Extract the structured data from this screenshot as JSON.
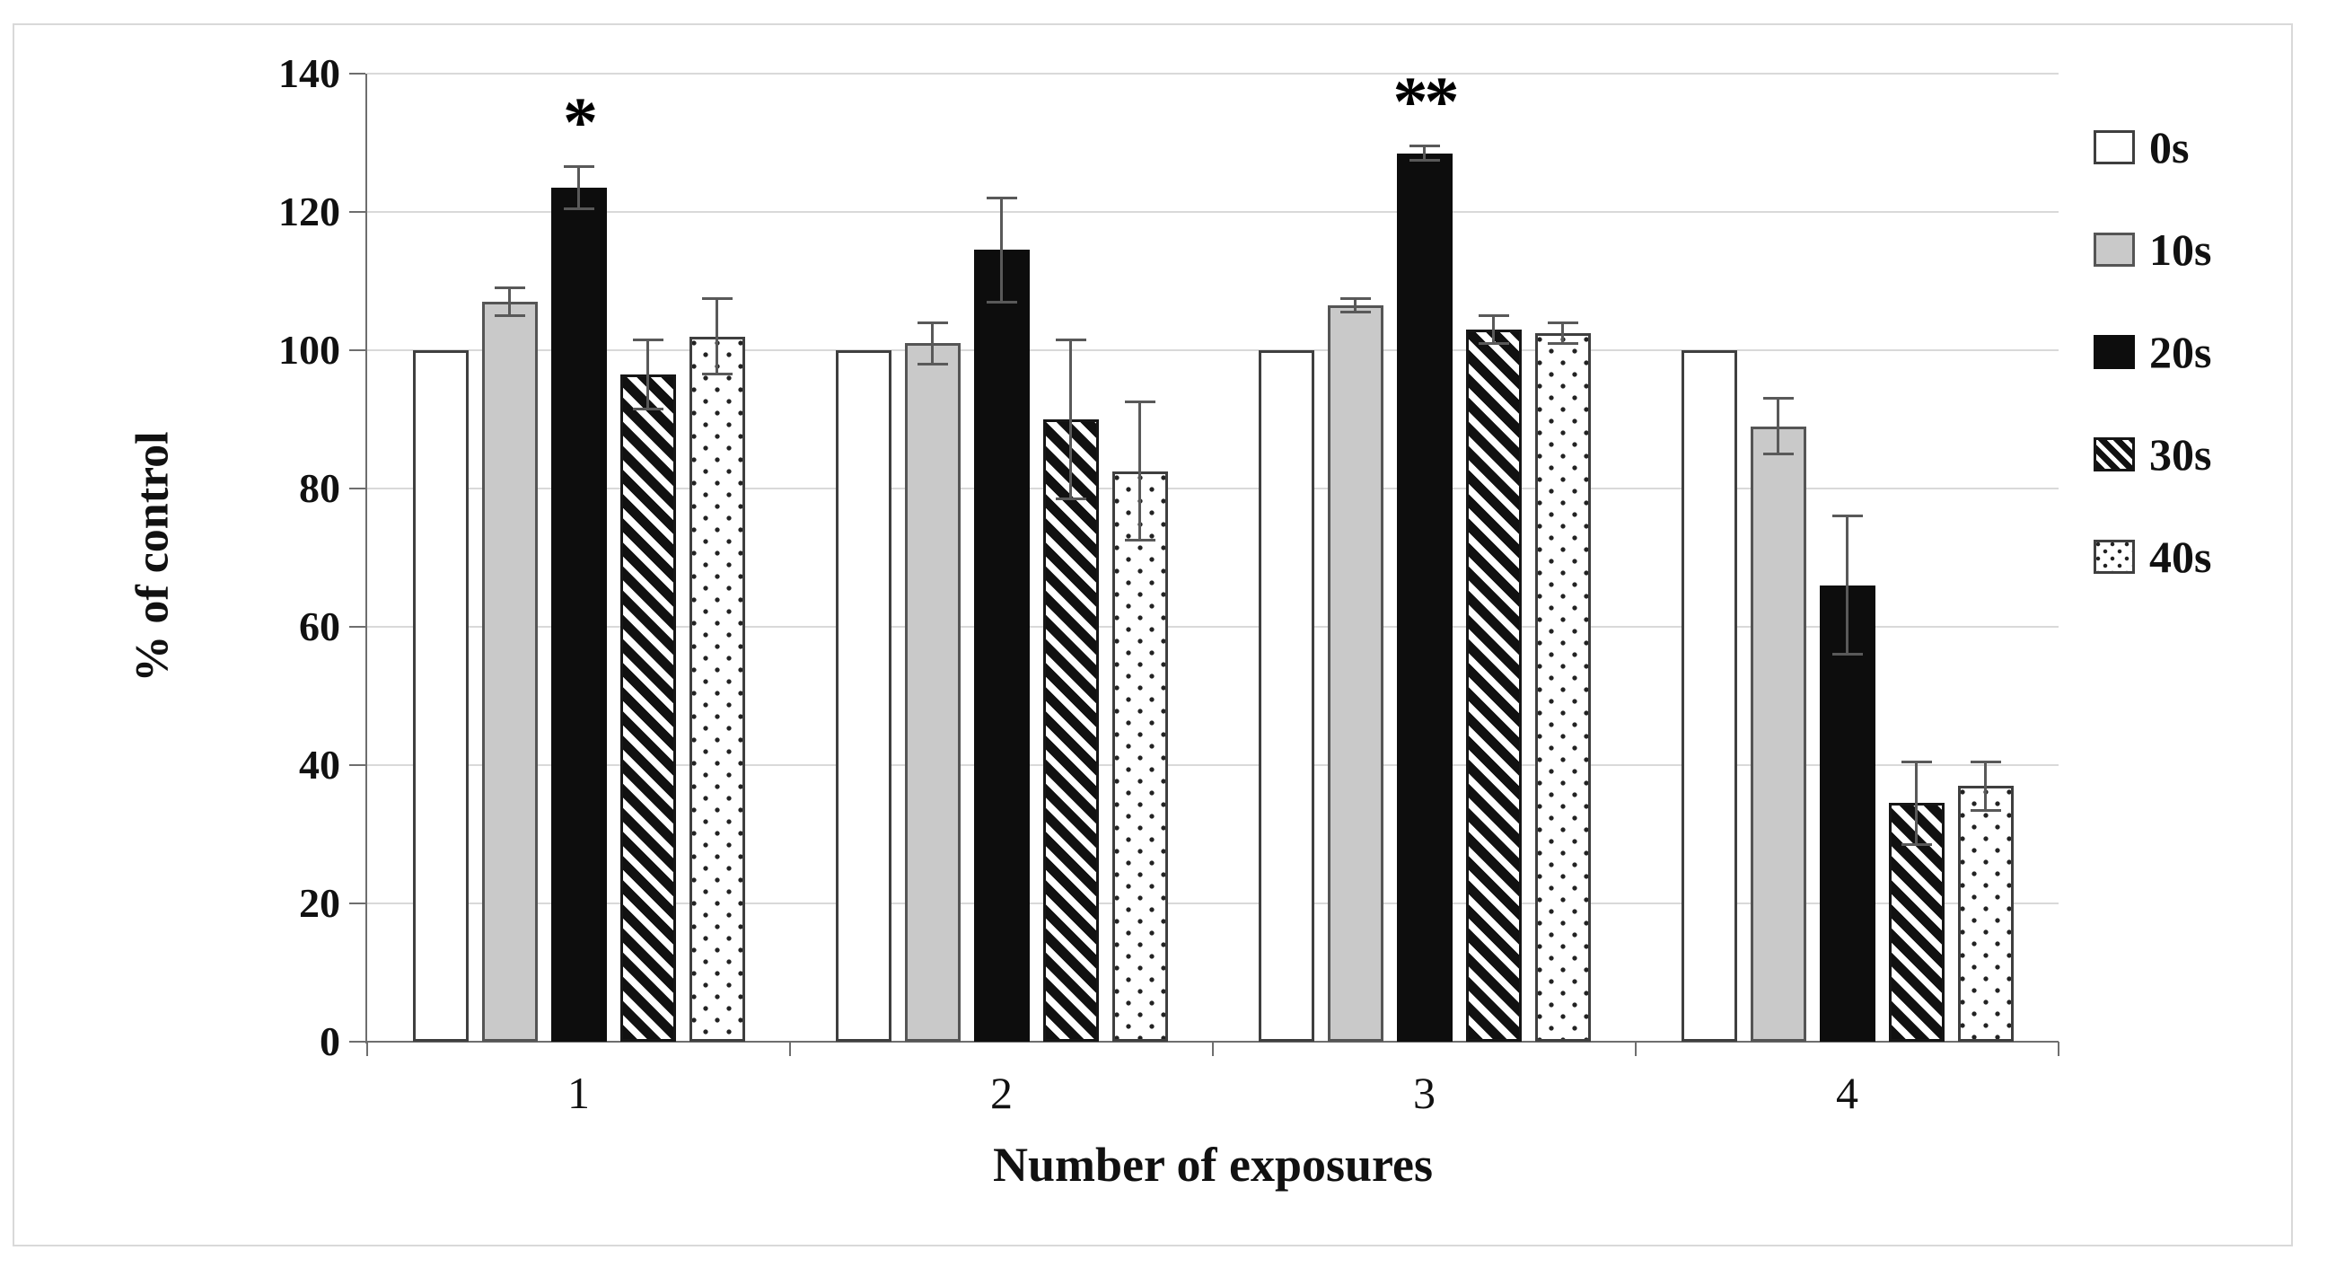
{
  "figure": {
    "background": "#ffffff",
    "border_color": "#d9d9d9"
  },
  "chart_data": {
    "type": "bar",
    "title": "",
    "xlabel": "Number of exposures",
    "ylabel": "% of control",
    "categories": [
      "1",
      "2",
      "3",
      "4"
    ],
    "ylim": [
      0,
      140
    ],
    "yticks": [
      0,
      20,
      40,
      60,
      80,
      100,
      120,
      140
    ],
    "grid": "horizontal",
    "legend_position": "right",
    "series": [
      {
        "name": "0s",
        "pattern": "white",
        "values": [
          100,
          100,
          100,
          100
        ],
        "errors": [
          0,
          0,
          0,
          0
        ]
      },
      {
        "name": "10s",
        "pattern": "gray",
        "values": [
          107,
          101,
          106.5,
          89
        ],
        "errors": [
          2,
          3,
          1,
          4
        ]
      },
      {
        "name": "20s",
        "pattern": "black",
        "values": [
          123.5,
          114.5,
          128.5,
          66
        ],
        "errors": [
          3,
          7.5,
          1,
          10
        ]
      },
      {
        "name": "30s",
        "pattern": "hatch",
        "values": [
          96.5,
          90,
          103,
          34.5
        ],
        "errors": [
          5,
          11.5,
          2,
          6
        ]
      },
      {
        "name": "40s",
        "pattern": "dots",
        "values": [
          102,
          82.5,
          102.5,
          37
        ],
        "errors": [
          5.5,
          10,
          1.5,
          3.5
        ]
      }
    ],
    "annotations": [
      {
        "text": "*",
        "category_index": 0,
        "series": "20s"
      },
      {
        "text": "**",
        "category_index": 2,
        "series": "20s"
      }
    ],
    "colors": {
      "gray_fill": "#c9c9c9",
      "black_fill": "#0d0d0d",
      "bar_border": "#3f3f3f",
      "error_bar": "#595959",
      "gridline": "#d9d9d9",
      "axis_line": "#6e6e6e"
    }
  }
}
